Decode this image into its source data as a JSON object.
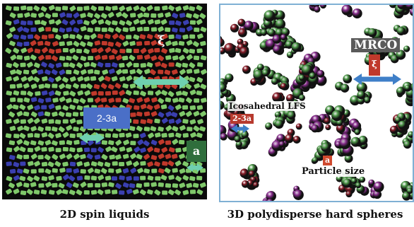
{
  "captions": {
    "left": "2D spin liquids",
    "right": "3D polydisperse hard spheres"
  },
  "labels": {
    "left_scale": "2-3a",
    "left_particle": "a",
    "left_xi": "ξ",
    "mrco": "MRCO",
    "icosahedral": "Icosahedral LFS",
    "right_scale": "2-3a",
    "right_particle": "a",
    "particle_size": "Particle size",
    "right_xi": "ξ"
  },
  "colors": {
    "left_background": "#0a0a0a",
    "green_particle": "#7fc86a",
    "blue_particle": "#3a3fb0",
    "red_particle": "#c0392b",
    "sphere_green": "#4f9a4a",
    "sphere_purple": "#8a2f8f",
    "sphere_darkred": "#8b1e2a",
    "arrow_teal": "#6fd0b0",
    "arrow_blue": "#3f7fc8",
    "frame_blue": "#7fb0d4"
  }
}
